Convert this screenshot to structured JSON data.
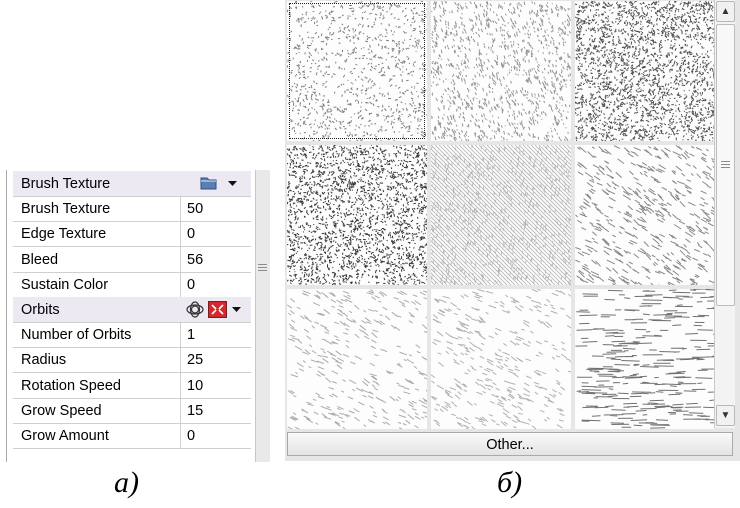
{
  "property_grid": {
    "rows": [
      {
        "type": "section",
        "name": "Brush Texture",
        "icons": [
          "folder-icon",
          "dropdown-arrow-icon"
        ]
      },
      {
        "type": "prop",
        "name": "Brush Texture",
        "value": "50"
      },
      {
        "type": "prop",
        "name": "Edge Texture",
        "value": "0"
      },
      {
        "type": "prop",
        "name": "Bleed",
        "value": "56"
      },
      {
        "type": "prop",
        "name": "Sustain Color",
        "value": "0"
      },
      {
        "type": "section",
        "name": "Orbits",
        "icons": [
          "orbit-link-icon",
          "orbit-grid-icon",
          "dropdown-arrow-icon"
        ]
      },
      {
        "type": "prop",
        "name": "Number of Orbits",
        "value": "1"
      },
      {
        "type": "prop",
        "name": "Radius",
        "value": "25"
      },
      {
        "type": "prop",
        "name": "Rotation Speed",
        "value": "10"
      },
      {
        "type": "prop",
        "name": "Grow Speed",
        "value": "15"
      },
      {
        "type": "prop",
        "name": "Grow Amount",
        "value": "0"
      }
    ]
  },
  "texture_picker": {
    "tiles": [
      {
        "name": "texture-fine-speckle",
        "selected": true
      },
      {
        "name": "texture-light-grain",
        "selected": false
      },
      {
        "name": "texture-dense-grain",
        "selected": false
      },
      {
        "name": "texture-coarse-speckle",
        "selected": false
      },
      {
        "name": "texture-diagonal-hatch",
        "selected": false
      },
      {
        "name": "texture-soft-strokes",
        "selected": false
      },
      {
        "name": "texture-faint-strokes",
        "selected": false
      },
      {
        "name": "texture-faint-grain",
        "selected": false
      },
      {
        "name": "texture-horizontal-streaks",
        "selected": false
      }
    ],
    "other_button": "Other..."
  },
  "captions": {
    "a": "a)",
    "b": "б)"
  },
  "colors": {
    "section_row_bg": "#ece9f3",
    "panel_bg": "#e6e6e6",
    "orbit_icon_red": "#d6282c"
  }
}
